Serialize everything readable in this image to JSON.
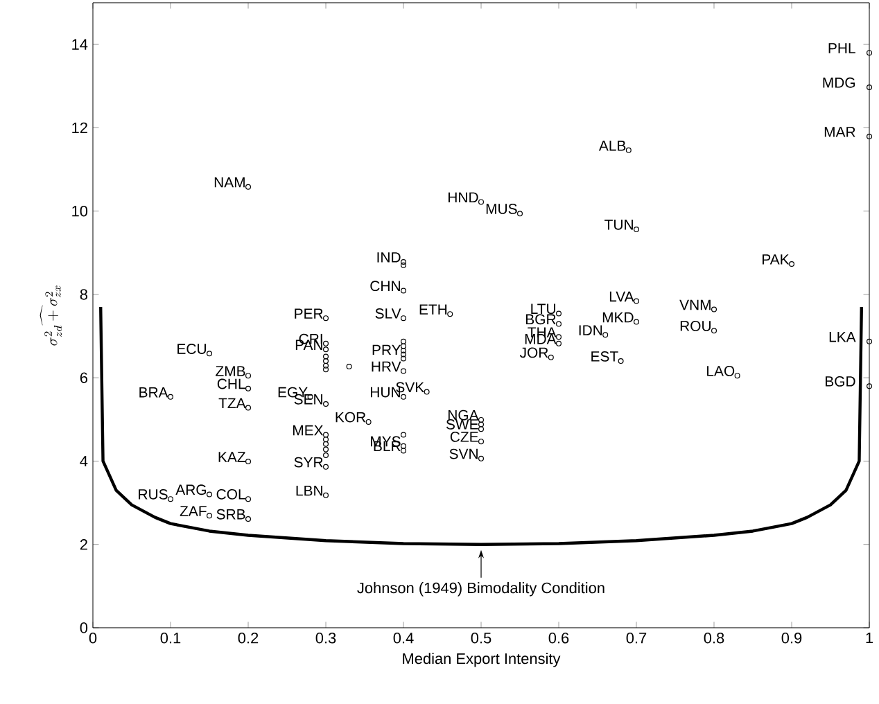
{
  "chart_data": {
    "type": "scatter",
    "xlabel": "Median Export Intensity",
    "ylabel": "\\widehat{\\sigma^2_{zd}+\\sigma^2_{zx}}",
    "xlim": [
      0,
      1
    ],
    "ylim": [
      0,
      15
    ],
    "xticks": [
      0,
      0.1,
      0.2,
      0.3,
      0.4,
      0.5,
      0.6,
      0.7,
      0.8,
      0.9,
      1
    ],
    "yticks": [
      0,
      2,
      4,
      6,
      8,
      10,
      12,
      14
    ],
    "series": [
      {
        "marker": "circle",
        "color": "#000000",
        "x": [
          0.2,
          0.5,
          0.55,
          0.69,
          0.7,
          0.9,
          1.0,
          1.0,
          1.0,
          1.0,
          1.0,
          0.7,
          0.7,
          0.8,
          0.8,
          0.83,
          0.66,
          0.68,
          0.6,
          0.6,
          0.6,
          0.6,
          0.59,
          0.5,
          0.5,
          0.5,
          0.5,
          0.5,
          0.4,
          0.4,
          0.4,
          0.4,
          0.46,
          0.4,
          0.4,
          0.4,
          0.4,
          0.4,
          0.4,
          0.4,
          0.43,
          0.4,
          0.4,
          0.4,
          0.3,
          0.3,
          0.3,
          0.3,
          0.3,
          0.3,
          0.3,
          0.33,
          0.28,
          0.3,
          0.355,
          0.3,
          0.3,
          0.3,
          0.3,
          0.3,
          0.3,
          0.3,
          0.15,
          0.2,
          0.2,
          0.2,
          0.1,
          0.2,
          0.1,
          0.15,
          0.15,
          0.2,
          0.2
        ],
        "values": [
          10.58,
          10.22,
          9.94,
          11.46,
          9.56,
          8.73,
          13.8,
          12.97,
          11.79,
          6.87,
          5.8,
          7.84,
          7.34,
          7.64,
          7.13,
          6.05,
          7.03,
          6.4,
          7.54,
          7.29,
          6.98,
          6.82,
          6.49,
          4.99,
          4.88,
          4.77,
          4.47,
          4.06,
          8.78,
          8.7,
          8.09,
          7.43,
          7.53,
          6.87,
          6.76,
          6.65,
          6.56,
          6.46,
          6.16,
          5.54,
          5.66,
          4.63,
          4.36,
          4.25,
          7.43,
          6.82,
          6.68,
          6.51,
          6.4,
          6.29,
          6.2,
          6.27,
          5.54,
          5.37,
          4.94,
          4.63,
          4.52,
          4.41,
          4.28,
          4.14,
          3.86,
          3.18,
          6.58,
          6.05,
          5.74,
          5.28,
          5.54,
          3.99,
          3.09,
          3.2,
          2.69,
          3.09,
          2.61
        ]
      },
      {
        "type": "line",
        "line_style": "solid",
        "color": "#000000",
        "x": [
          0.01,
          0.013,
          0.03,
          0.05,
          0.08,
          0.1,
          0.15,
          0.2,
          0.3,
          0.4,
          0.5,
          0.6,
          0.7,
          0.8,
          0.85,
          0.9,
          0.92,
          0.95,
          0.97,
          0.987,
          0.99
        ],
        "values": [
          7.7,
          4.0,
          3.3,
          2.95,
          2.65,
          2.5,
          2.32,
          2.22,
          2.09,
          2.02,
          2.0,
          2.02,
          2.09,
          2.22,
          2.32,
          2.5,
          2.65,
          2.95,
          3.3,
          4.0,
          7.7
        ]
      }
    ],
    "annotations": [
      {
        "text": "NAM",
        "x": 0.2,
        "y": 10.58
      },
      {
        "text": "HND",
        "x": 0.5,
        "y": 10.22
      },
      {
        "text": "MUS",
        "x": 0.55,
        "y": 9.94
      },
      {
        "text": "ALB",
        "x": 0.69,
        "y": 11.46
      },
      {
        "text": "TUN",
        "x": 0.7,
        "y": 9.56
      },
      {
        "text": "PAK",
        "x": 0.9,
        "y": 8.73
      },
      {
        "text": "PHL",
        "x": 1.0,
        "y": 13.8
      },
      {
        "text": "MDG",
        "x": 1.0,
        "y": 12.97
      },
      {
        "text": "MAR",
        "x": 1.0,
        "y": 11.79
      },
      {
        "text": "LKA",
        "x": 1.0,
        "y": 6.87
      },
      {
        "text": "BGD",
        "x": 1.0,
        "y": 5.8
      },
      {
        "text": "LVA",
        "x": 0.7,
        "y": 7.84
      },
      {
        "text": "MKD",
        "x": 0.7,
        "y": 7.34
      },
      {
        "text": "VNM",
        "x": 0.8,
        "y": 7.64
      },
      {
        "text": "ROU",
        "x": 0.8,
        "y": 7.13
      },
      {
        "text": "LAO",
        "x": 0.83,
        "y": 6.05
      },
      {
        "text": "IDN",
        "x": 0.66,
        "y": 7.03
      },
      {
        "text": "EST",
        "x": 0.68,
        "y": 6.4
      },
      {
        "text": "LTU",
        "x": 0.6,
        "y": 7.54
      },
      {
        "text": "BGR",
        "x": 0.6,
        "y": 7.29
      },
      {
        "text": "THA",
        "x": 0.6,
        "y": 6.98
      },
      {
        "text": "MDA",
        "x": 0.6,
        "y": 6.82
      },
      {
        "text": "JOR",
        "x": 0.59,
        "y": 6.49
      },
      {
        "text": "NGA",
        "x": 0.5,
        "y": 4.99
      },
      {
        "text": "SWE",
        "x": 0.5,
        "y": 4.77
      },
      {
        "text": "CZE",
        "x": 0.5,
        "y": 4.47
      },
      {
        "text": "SVN",
        "x": 0.5,
        "y": 4.06
      },
      {
        "text": "IND",
        "x": 0.4,
        "y": 8.78
      },
      {
        "text": "CHN",
        "x": 0.4,
        "y": 8.09
      },
      {
        "text": "SLV",
        "x": 0.4,
        "y": 7.43
      },
      {
        "text": "ETH",
        "x": 0.46,
        "y": 7.53
      },
      {
        "text": "PRY",
        "x": 0.4,
        "y": 6.56
      },
      {
        "text": "HRV",
        "x": 0.4,
        "y": 6.16
      },
      {
        "text": "HUN",
        "x": 0.4,
        "y": 5.54
      },
      {
        "text": "SVK",
        "x": 0.43,
        "y": 5.66
      },
      {
        "text": "MYS",
        "x": 0.4,
        "y": 4.36
      },
      {
        "text": "BLR",
        "x": 0.4,
        "y": 4.25
      },
      {
        "text": "PER",
        "x": 0.3,
        "y": 7.43
      },
      {
        "text": "CRI",
        "x": 0.3,
        "y": 6.82
      },
      {
        "text": "PAN",
        "x": 0.3,
        "y": 6.68
      },
      {
        "text": "EGY",
        "x": 0.28,
        "y": 5.54
      },
      {
        "text": "SEN",
        "x": 0.3,
        "y": 5.37
      },
      {
        "text": "KOR",
        "x": 0.355,
        "y": 4.94
      },
      {
        "text": "MEX",
        "x": 0.3,
        "y": 4.63
      },
      {
        "text": "SYR",
        "x": 0.3,
        "y": 3.86
      },
      {
        "text": "LBN",
        "x": 0.3,
        "y": 3.18
      },
      {
        "text": "ECU",
        "x": 0.15,
        "y": 6.58
      },
      {
        "text": "ZMB",
        "x": 0.2,
        "y": 6.05
      },
      {
        "text": "CHL",
        "x": 0.2,
        "y": 5.74
      },
      {
        "text": "TZA",
        "x": 0.2,
        "y": 5.28
      },
      {
        "text": "BRA",
        "x": 0.1,
        "y": 5.54
      },
      {
        "text": "KAZ",
        "x": 0.2,
        "y": 3.99
      },
      {
        "text": "RUS",
        "x": 0.1,
        "y": 3.09
      },
      {
        "text": "ARG",
        "x": 0.15,
        "y": 3.2
      },
      {
        "text": "ZAF",
        "x": 0.15,
        "y": 2.69
      },
      {
        "text": "COL",
        "x": 0.2,
        "y": 3.09
      },
      {
        "text": "SRB",
        "x": 0.2,
        "y": 2.61
      },
      {
        "text": "Johnson (1949) Bimodality Condition",
        "x": 0.5,
        "y": 2.0
      }
    ]
  }
}
